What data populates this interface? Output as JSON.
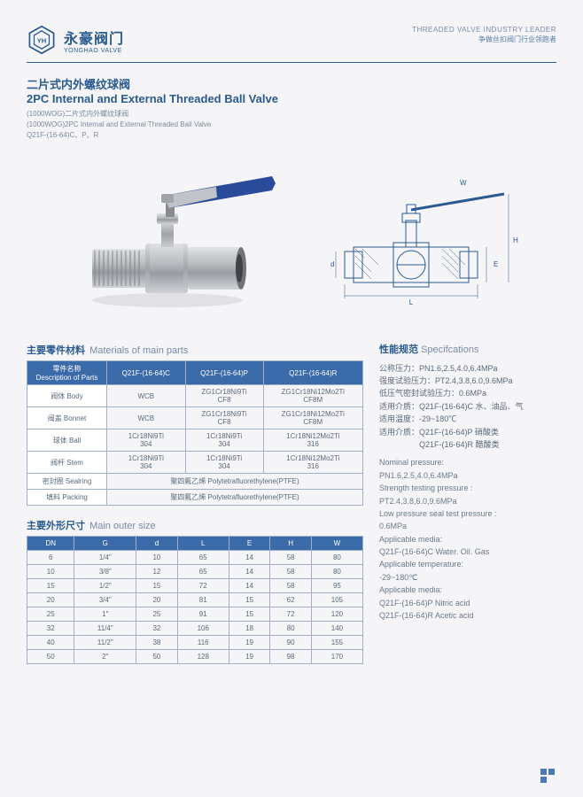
{
  "header": {
    "brand_cn": "永豪阀门",
    "brand_en": "YONGHAO VALVE",
    "tagline_en": "THREADED VALVE INDUSTRY LEADER",
    "tagline_cn": "争做丝扣阀门行业领跑者"
  },
  "title": {
    "cn": "二片式内外螺纹球阀",
    "en": "2PC Internal and External Threaded Ball Valve",
    "sub1": "(1000WOG)二片式内外螺纹球阀",
    "sub2": "(1000WOG)2PC Internal and External Threaded Ball Valve",
    "sub3": "Q21F-(16-64)C、P、R"
  },
  "materials": {
    "section_cn": "主要零件材料",
    "section_en": "Materials of main parts",
    "headers": [
      "零件名称\nDescription of Parts",
      "Q21F-(16-64)C",
      "Q21F-(16-64)P",
      "Q21F-(16-64)R"
    ],
    "rows": [
      [
        "阀体 Body",
        "WCB",
        "ZG1Cr18Ni9Ti\nCF8",
        "ZG1Cr18Ni12Mo2Ti\nCF8M"
      ],
      [
        "阀盖 Bonnet",
        "WCB",
        "ZG1Cr18Ni9Ti\nCF8",
        "ZG1Cr18Ni12Mo2Ti\nCF8M"
      ],
      [
        "球体 Ball",
        "1Cr18Ni9Ti\n304",
        "1Cr18Ni9Ti\n304",
        "1Cr18Ni12Mo2Ti\n316"
      ],
      [
        "阀杆 Stem",
        "1Cr18Ni9Ti\n304",
        "1Cr18Ni9Ti\n304",
        "1Cr18Ni12Mo2Ti\n316"
      ]
    ],
    "merged_rows": [
      [
        "密封圈 Sealring",
        "聚四氟乙烯 Polytetrafluorethylene(PTFE)"
      ],
      [
        "填料 Packing",
        "聚四氟乙烯 Polytetrafluorethylene(PTFE)"
      ]
    ]
  },
  "sizes": {
    "section_cn": "主要外形尺寸",
    "section_en": "Main outer size",
    "headers": [
      "DN",
      "G",
      "d",
      "L",
      "E",
      "H",
      "W"
    ],
    "rows": [
      [
        "6",
        "1/4\"",
        "10",
        "65",
        "14",
        "58",
        "80"
      ],
      [
        "10",
        "3/8\"",
        "12",
        "65",
        "14",
        "58",
        "80"
      ],
      [
        "15",
        "1/2\"",
        "15",
        "72",
        "14",
        "58",
        "95"
      ],
      [
        "20",
        "3/4\"",
        "20",
        "81",
        "15",
        "62",
        "105"
      ],
      [
        "25",
        "1\"",
        "25",
        "91",
        "15",
        "72",
        "120"
      ],
      [
        "32",
        "11/4\"",
        "32",
        "106",
        "18",
        "80",
        "140"
      ],
      [
        "40",
        "11/2\"",
        "38",
        "116",
        "19",
        "90",
        "155"
      ],
      [
        "50",
        "2\"",
        "50",
        "128",
        "19",
        "98",
        "170"
      ]
    ]
  },
  "specs": {
    "title_cn": "性能规范",
    "title_en": "Specifcations",
    "lines_cn": [
      "公称压力：PN1.6,2.5,4.0,6.4MPa",
      "强度试验压力：PT2.4,3.8,6.0,9.6MPa",
      "低压气密封试验压力：0.6MPa",
      "适用介质：Q21F-(16-64)C 水、油品、气",
      "适用温度：-29~180℃",
      "适用介质：Q21F-(16-64)P 硝酸类",
      "　　　　　Q21F-(16-64)R 醋酸类"
    ],
    "lines_en": [
      "Nominal pressure:",
      "PN1.6,2.5,4.0,6.4MPa",
      "Strength testing pressure :",
      "PT2.4,3.8,6.0,9.6MPa",
      "Low pressure seal test pressure :",
      "0.6MPa",
      "Applicable media:",
      "Q21F-(16-64)C Water. Oil. Gas",
      "Applicable temperature:",
      "-29~180℃",
      "Applicable media:",
      "Q21F-(16-64)P Nitric acid",
      "Q21F-(16-64)R Acetic acid"
    ]
  },
  "colors": {
    "brand": "#2a5a8f",
    "table_header": "#3a6aa8",
    "border": "#a0b0c8",
    "handle": "#2a4a9a",
    "steel": "#b0b4b8"
  }
}
